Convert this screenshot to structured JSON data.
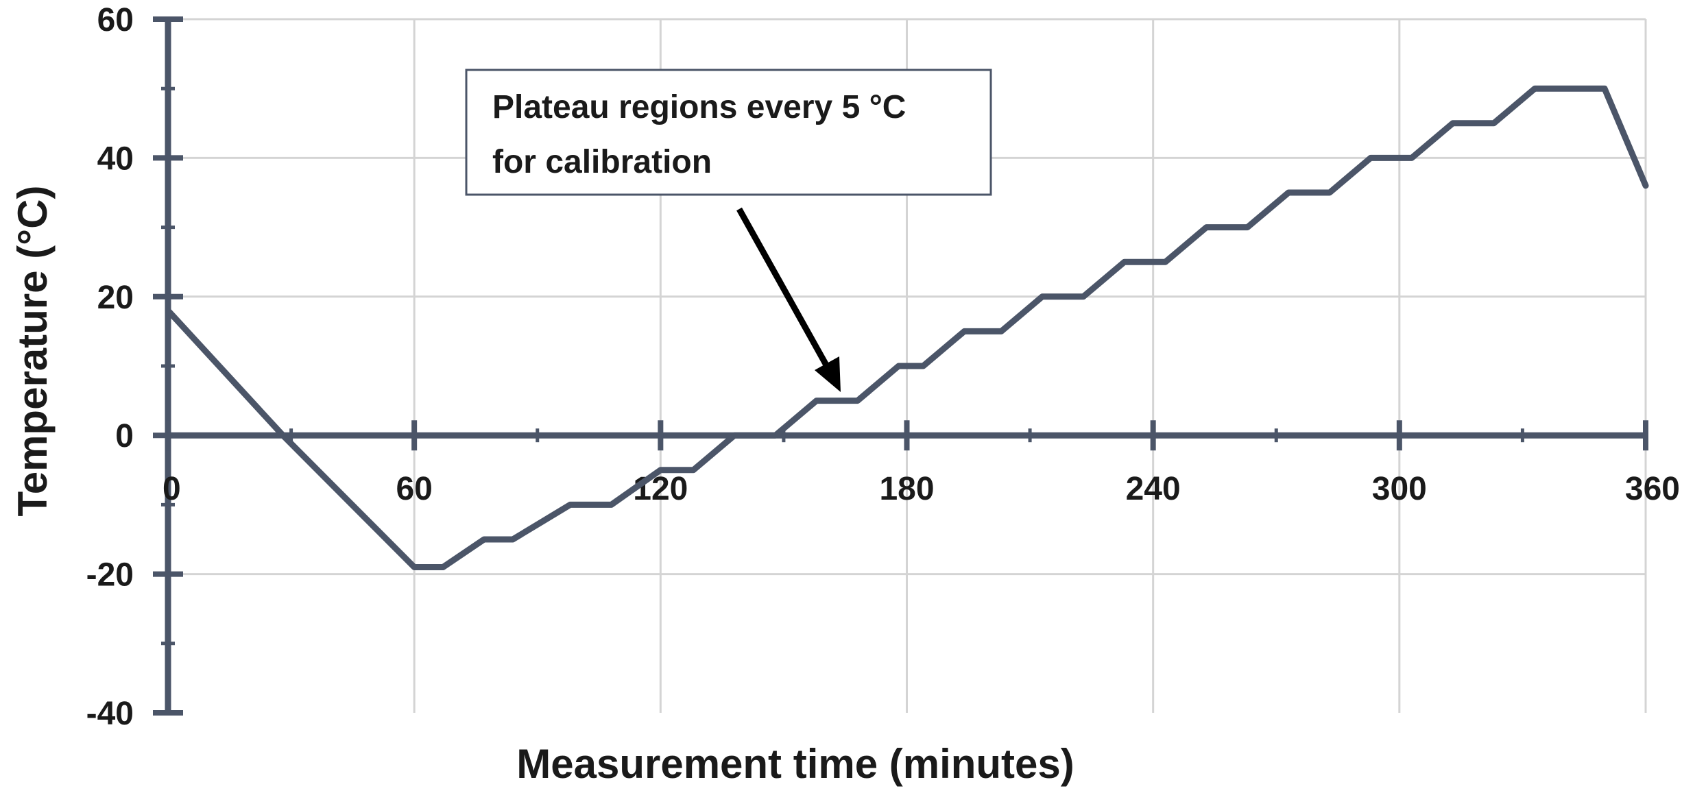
{
  "chart_data": {
    "type": "line",
    "title": "",
    "xlabel": "Measurement time (minutes)",
    "ylabel": "Temperature (°C)",
    "xlim": [
      0,
      360
    ],
    "ylim": [
      -40,
      60
    ],
    "x_ticks": [
      "0",
      "60",
      "120",
      "180",
      "240",
      "300",
      "360"
    ],
    "y_ticks": [
      "60",
      "40",
      "20",
      "0",
      "-20",
      "-40"
    ],
    "grid": true,
    "legend": "none",
    "line_color": "#4b5568",
    "series": [
      {
        "x": [
          0,
          28,
          60,
          67,
          77,
          84,
          98,
          108,
          120,
          128,
          138,
          148,
          158,
          168,
          178,
          184,
          194,
          203,
          213,
          223,
          233,
          243,
          253,
          263,
          273,
          283,
          293,
          303,
          313,
          323,
          333,
          341,
          350,
          360
        ],
        "y": [
          18,
          0,
          -19,
          -19,
          -15,
          -15,
          -10,
          -10,
          -5,
          -5,
          0,
          0,
          5,
          5,
          10,
          10,
          15,
          15,
          20,
          20,
          25,
          25,
          30,
          30,
          35,
          35,
          40,
          40,
          45,
          45,
          50,
          50,
          50,
          36
        ]
      }
    ],
    "annotation": {
      "lines": [
        "Plateau regions every 5 °C",
        "for calibration"
      ]
    }
  }
}
